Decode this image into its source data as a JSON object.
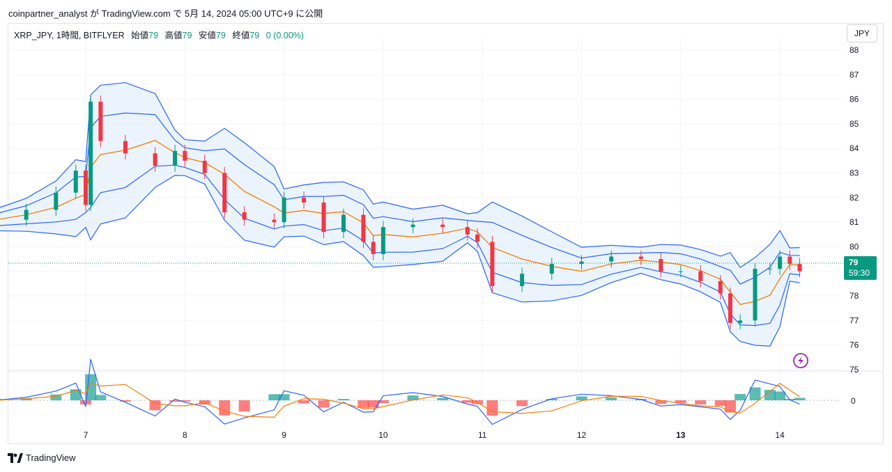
{
  "header": {
    "publisher_line": "coinpartner_analyst が TradingView.com で 5月 14, 2024 05:00 UTC+9 に公開"
  },
  "legend": {
    "symbol": "XRP_JPY, 1時間, BITFLYER",
    "open_label": "始値",
    "open_value": "79",
    "high_label": "高値",
    "high_value": "79",
    "low_label": "安値",
    "low_value": "79",
    "close_label": "終値",
    "close_value": "79",
    "change": "0 (0.00%)"
  },
  "currency_button": "JPY",
  "price_tag": {
    "price": "79",
    "countdown": "59:30"
  },
  "brand": "TradingView",
  "colors": {
    "up": "#089981",
    "down": "#f23645",
    "band": "#2962ff",
    "basis": "#f57c00",
    "band_fill": "#e3f0fb"
  },
  "icons": [
    "lightning-icon",
    "tradingview-logo-icon"
  ],
  "chart_data": [
    {
      "type": "candlestick",
      "title": "XRP_JPY, 1時間, BITFLYER",
      "y_ticks": [
        "88",
        "87",
        "86",
        "85",
        "84",
        "83",
        "82",
        "81",
        "80",
        "79",
        "78",
        "77",
        "76",
        "75"
      ],
      "x_ticks": [
        "7",
        "8",
        "9",
        "10",
        "11",
        "12",
        "13",
        "14"
      ],
      "ylim": [
        74.9,
        88.3
      ],
      "last_price": 79,
      "indicators": [
        "Bollinger Bands",
        "EMA"
      ],
      "x": [
        6.1,
        6.4,
        6.7,
        6.9,
        7.0,
        7.05,
        7.15,
        7.4,
        7.7,
        7.9,
        8.0,
        8.2,
        8.4,
        8.6,
        8.9,
        9.0,
        9.2,
        9.4,
        9.6,
        9.8,
        9.9,
        10.0,
        10.3,
        10.6,
        10.85,
        10.95,
        11.1,
        11.4,
        11.7,
        12.0,
        12.3,
        12.6,
        12.8,
        13.0,
        13.2,
        13.4,
        13.5,
        13.6,
        13.75,
        13.9,
        14.0,
        14.1,
        14.2
      ],
      "close": [
        81.1,
        81.5,
        82.2,
        83.1,
        81.7,
        85.9,
        84.3,
        83.8,
        83.3,
        83.9,
        83.5,
        83.0,
        81.4,
        81.1,
        81.0,
        82.0,
        81.8,
        80.6,
        81.3,
        80.2,
        79.7,
        80.8,
        80.9,
        80.8,
        80.5,
        80.2,
        78.4,
        78.9,
        79.3,
        79.4,
        79.6,
        79.5,
        79.0,
        79.0,
        78.6,
        78.1,
        76.9,
        77.0,
        79.1,
        79.1,
        79.6,
        79.3,
        79.0
      ]
    },
    {
      "type": "macd",
      "zero_label": "0",
      "histogram_sign": [
        "up",
        "up",
        "up",
        "up",
        "down",
        "up",
        "up",
        "down",
        "down",
        "down",
        "down",
        "down",
        "down",
        "down",
        "up",
        "up",
        "down",
        "down",
        "up",
        "down",
        "down",
        "down",
        "up",
        "up",
        "down",
        "down",
        "down",
        "down",
        "up",
        "up",
        "up",
        "up",
        "down",
        "down",
        "down",
        "down",
        "down",
        "up",
        "up",
        "up",
        "up",
        "up",
        "up"
      ]
    }
  ]
}
